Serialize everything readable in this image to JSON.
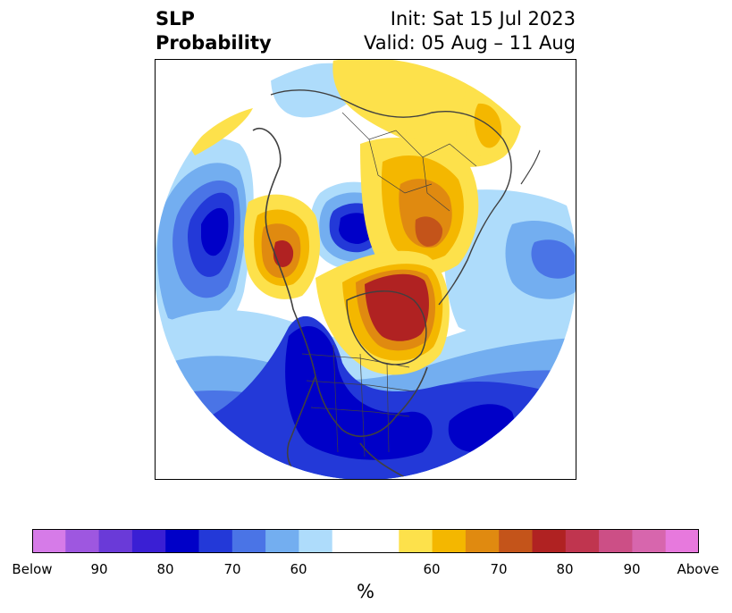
{
  "header": {
    "title_line1": "SLP",
    "title_line2": "Probability",
    "init_text": "Init: Sat 15 Jul 2023",
    "valid_text": "Valid: 05 Aug – 11 Aug"
  },
  "colorbar": {
    "unit_label": "%",
    "tick_labels": [
      "Below",
      "90",
      "80",
      "70",
      "60",
      "60",
      "70",
      "80",
      "90",
      "Above"
    ],
    "colors": [
      "#d67be8",
      "#9e57e0",
      "#6a3ad8",
      "#3a1fd4",
      "#0000c8",
      "#2339d8",
      "#4a74e6",
      "#73aef0",
      "#aedcfb",
      "#ffffff",
      "#ffffff",
      "#fde14b",
      "#f4b700",
      "#e08a10",
      "#c4541a",
      "#b02222",
      "#c0354f",
      "#cc4f86",
      "#d766ad",
      "#e779dd"
    ]
  },
  "map": {
    "projection": "polar stereographic (north pole)",
    "below_colors": {
      "c60": "#aedcfb",
      "c65": "#73aef0",
      "c70": "#4a74e6",
      "c75": "#2339d8",
      "c80": "#0000c8"
    },
    "above_colors": {
      "c55": "#fde14b",
      "c60": "#f4b700",
      "c65": "#e08a10",
      "c70": "#c4541a",
      "c75": "#b02222"
    },
    "coast_color": "#404040"
  }
}
